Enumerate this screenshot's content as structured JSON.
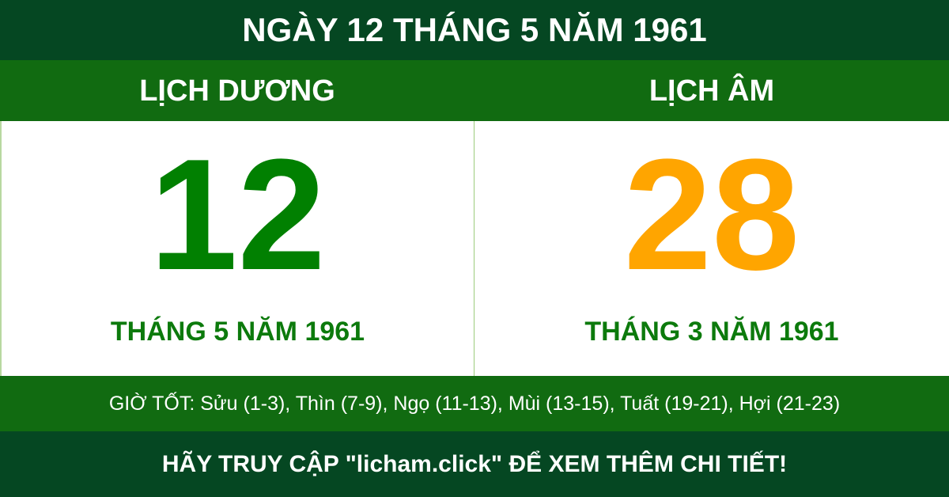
{
  "title": "NGÀY 12 THÁNG 5 NĂM 1961",
  "solar": {
    "heading": "LỊCH DƯƠNG",
    "day": "12",
    "month_year": "THÁNG 5 NĂM 1961"
  },
  "lunar": {
    "heading": "LỊCH ÂM",
    "day": "28",
    "month_year": "THÁNG 3 NĂM 1961"
  },
  "good_hours": "GIỜ TỐT: Sửu (1-3), Thìn (7-9), Ngọ (11-13), Mùi (13-15), Tuất (19-21), Hợi (21-23)",
  "footer": "HÃY TRUY CẬP \"licham.click\" ĐỂ XEM THÊM CHI TIẾT!",
  "colors": {
    "dark_green": "#054722",
    "band_green": "#116b11",
    "solar_number": "#018001",
    "lunar_number": "#ffa500"
  }
}
